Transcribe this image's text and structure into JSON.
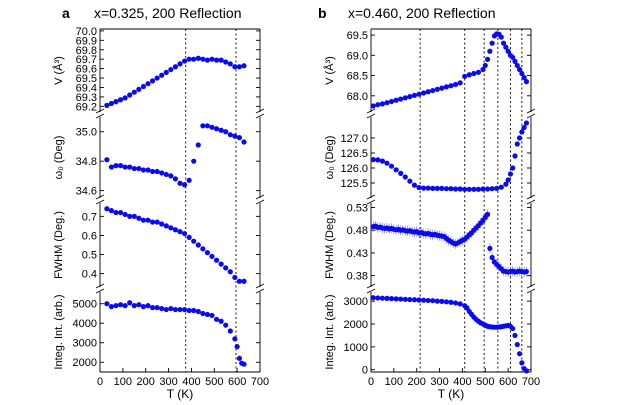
{
  "colors": {
    "points": "#0a0aee",
    "errorbars": "#6a6aff"
  },
  "chart_data": [
    {
      "type": "scatter",
      "letter": "a",
      "title": "x=0.325, 200 Reflection",
      "xlabel": "T (K)",
      "xlim": [
        0,
        700
      ],
      "xticks": [
        "0",
        "100",
        "200",
        "300",
        "400",
        "500",
        "600",
        "700"
      ],
      "vlines_x": [
        375,
        595
      ],
      "panels": [
        {
          "name": "volume",
          "ylabel": "V (Å³)",
          "ylim": [
            69.14,
            70.02
          ],
          "yticks": [
            69.2,
            69.3,
            69.4,
            69.5,
            69.6,
            69.7,
            69.8,
            69.9,
            70.0
          ],
          "tick_labels": [
            "69.2",
            "69.3",
            "69.4",
            "69.5",
            "69.6",
            "69.7",
            "69.8",
            "69.9",
            "70.0"
          ],
          "x": [
            30,
            50,
            70,
            90,
            110,
            130,
            150,
            170,
            190,
            210,
            230,
            250,
            270,
            290,
            310,
            330,
            350,
            370,
            390,
            410,
            430,
            450,
            470,
            490,
            510,
            530,
            550,
            570,
            590,
            610,
            630
          ],
          "y": [
            69.21,
            69.23,
            69.25,
            69.27,
            69.29,
            69.32,
            69.35,
            69.38,
            69.41,
            69.44,
            69.47,
            69.5,
            69.53,
            69.56,
            69.59,
            69.62,
            69.65,
            69.68,
            69.7,
            69.7,
            69.71,
            69.7,
            69.69,
            69.7,
            69.69,
            69.69,
            69.67,
            69.65,
            69.62,
            69.62,
            69.63
          ]
        },
        {
          "name": "omega",
          "ylabel": "ω₀ (Deg)",
          "ylim": [
            34.55,
            35.1
          ],
          "yticks": [
            34.6,
            34.8,
            35.0
          ],
          "tick_labels": [
            "34.6",
            "34.8",
            "35.0"
          ],
          "x": [
            30,
            50,
            70,
            90,
            110,
            130,
            150,
            170,
            190,
            210,
            230,
            250,
            270,
            290,
            310,
            330,
            350,
            370,
            390,
            410,
            430,
            450,
            470,
            490,
            510,
            530,
            550,
            570,
            590,
            610,
            630
          ],
          "y": [
            34.81,
            34.76,
            34.77,
            34.77,
            34.76,
            34.76,
            34.75,
            34.75,
            34.74,
            34.74,
            34.73,
            34.73,
            34.72,
            34.71,
            34.7,
            34.68,
            34.65,
            34.64,
            34.67,
            34.8,
            34.91,
            35.04,
            35.04,
            35.03,
            35.02,
            35.01,
            35.0,
            34.98,
            34.97,
            34.96,
            34.93
          ]
        },
        {
          "name": "fwhm",
          "ylabel": "FWHM (Deg.)",
          "ylim": [
            0.33,
            0.77
          ],
          "yticks": [
            0.4,
            0.5,
            0.6,
            0.7
          ],
          "tick_labels": [
            "0.4",
            "0.5",
            "0.6",
            "0.7"
          ],
          "x": [
            30,
            50,
            70,
            90,
            110,
            130,
            150,
            170,
            190,
            210,
            230,
            250,
            270,
            290,
            310,
            330,
            350,
            370,
            390,
            410,
            430,
            450,
            470,
            490,
            510,
            530,
            550,
            570,
            590,
            610,
            630
          ],
          "y": [
            0.74,
            0.73,
            0.72,
            0.72,
            0.71,
            0.7,
            0.7,
            0.69,
            0.68,
            0.68,
            0.67,
            0.67,
            0.66,
            0.65,
            0.64,
            0.63,
            0.62,
            0.61,
            0.59,
            0.57,
            0.55,
            0.53,
            0.51,
            0.49,
            0.47,
            0.45,
            0.43,
            0.41,
            0.38,
            0.36,
            0.36
          ]
        },
        {
          "name": "intensity",
          "ylabel": "Integ. Int. (arb.)",
          "ylim": [
            1500,
            5600
          ],
          "yticks": [
            2000,
            3000,
            4000,
            5000
          ],
          "tick_labels": [
            "2000",
            "3000",
            "4000",
            "5000"
          ],
          "x": [
            30,
            50,
            70,
            90,
            110,
            130,
            150,
            170,
            190,
            210,
            230,
            250,
            270,
            290,
            310,
            330,
            350,
            370,
            390,
            410,
            430,
            450,
            470,
            490,
            510,
            530,
            550,
            570,
            590,
            600,
            610,
            620,
            630
          ],
          "y": [
            5000,
            4850,
            4900,
            4950,
            4900,
            5050,
            4900,
            4950,
            4850,
            4900,
            4800,
            4800,
            4750,
            4700,
            4750,
            4700,
            4700,
            4700,
            4650,
            4650,
            4600,
            4500,
            4450,
            4400,
            4200,
            4100,
            3900,
            3600,
            3200,
            2800,
            2200,
            1950,
            1900
          ]
        }
      ]
    },
    {
      "type": "scatter",
      "letter": "b",
      "title": "x=0.460, 200 Reflection",
      "xlabel": "T (K)",
      "xlim": [
        0,
        700
      ],
      "xticks": [
        "0",
        "100",
        "200",
        "300",
        "400",
        "500",
        "600",
        "700"
      ],
      "vlines_x": [
        215,
        410,
        495,
        555,
        610,
        660
      ],
      "panels": [
        {
          "name": "volume",
          "ylabel": "V (Å³)",
          "ylim": [
            67.6,
            69.65
          ],
          "yticks": [
            68.0,
            68.5,
            69.0,
            69.5
          ],
          "tick_labels": [
            "68.0",
            "68.5",
            "69.0",
            "69.5"
          ],
          "x": [
            10,
            30,
            50,
            70,
            90,
            110,
            130,
            150,
            170,
            190,
            210,
            230,
            250,
            270,
            290,
            310,
            330,
            350,
            370,
            390,
            410,
            430,
            450,
            470,
            490,
            500,
            510,
            520,
            530,
            540,
            550,
            560,
            570,
            580,
            590,
            600,
            610,
            620,
            630,
            640,
            650,
            660,
            670,
            680
          ],
          "y": [
            67.75,
            67.78,
            67.8,
            67.83,
            67.86,
            67.89,
            67.92,
            67.95,
            67.98,
            68.01,
            68.04,
            68.07,
            68.1,
            68.13,
            68.16,
            68.19,
            68.22,
            68.25,
            68.28,
            68.32,
            68.48,
            68.52,
            68.55,
            68.58,
            68.65,
            68.75,
            68.9,
            69.1,
            69.3,
            69.48,
            69.53,
            69.52,
            69.45,
            69.3,
            69.2,
            69.1,
            69.0,
            68.95,
            68.85,
            68.75,
            68.65,
            68.55,
            68.45,
            68.35
          ]
        },
        {
          "name": "omega",
          "ylabel": "ω₀ (Deg)",
          "ylim": [
            125.0,
            127.7
          ],
          "yticks": [
            125.5,
            126.0,
            126.5,
            127.0
          ],
          "tick_labels": [
            "125.5",
            "126.0",
            "126.5",
            "127.0"
          ],
          "x": [
            10,
            30,
            50,
            70,
            90,
            110,
            130,
            150,
            170,
            190,
            210,
            230,
            250,
            270,
            290,
            310,
            330,
            350,
            370,
            390,
            410,
            430,
            450,
            470,
            490,
            510,
            530,
            550,
            570,
            590,
            600,
            610,
            620,
            630,
            640,
            650,
            660,
            670,
            680
          ],
          "y": [
            126.28,
            126.27,
            126.23,
            126.16,
            126.06,
            125.94,
            125.82,
            125.7,
            125.56,
            125.43,
            125.35,
            125.33,
            125.33,
            125.32,
            125.32,
            125.32,
            125.31,
            125.31,
            125.3,
            125.3,
            125.29,
            125.29,
            125.29,
            125.29,
            125.3,
            125.3,
            125.31,
            125.32,
            125.36,
            125.46,
            125.6,
            125.8,
            126.0,
            126.4,
            126.8,
            127.0,
            127.2,
            127.35,
            127.5
          ]
        },
        {
          "name": "fwhm",
          "ylabel": "FWHM (Deg.)",
          "ylim": [
            0.355,
            0.54
          ],
          "yticks": [
            0.38,
            0.43,
            0.48,
            0.53
          ],
          "tick_labels": [
            "0.38",
            "0.43",
            "0.48",
            "0.53"
          ],
          "x": [
            10,
            20,
            30,
            40,
            50,
            60,
            70,
            80,
            90,
            100,
            110,
            120,
            130,
            140,
            150,
            160,
            170,
            180,
            190,
            200,
            210,
            220,
            230,
            240,
            250,
            260,
            270,
            280,
            290,
            300,
            310,
            320,
            330,
            340,
            350,
            360,
            370,
            380,
            390,
            400,
            410,
            420,
            430,
            440,
            450,
            460,
            470,
            480,
            490,
            500,
            510,
            520,
            530,
            540,
            550,
            560,
            570,
            580,
            590,
            600,
            610,
            620,
            630,
            640,
            650,
            660,
            670,
            680
          ],
          "y": [
            0.488,
            0.489,
            0.486,
            0.487,
            0.485,
            0.484,
            0.485,
            0.483,
            0.484,
            0.482,
            0.481,
            0.482,
            0.48,
            0.481,
            0.479,
            0.478,
            0.479,
            0.477,
            0.476,
            0.477,
            0.474,
            0.475,
            0.473,
            0.472,
            0.473,
            0.471,
            0.47,
            0.471,
            0.469,
            0.468,
            0.467,
            0.466,
            0.462,
            0.458,
            0.455,
            0.452,
            0.45,
            0.452,
            0.455,
            0.458,
            0.46,
            0.465,
            0.47,
            0.474,
            0.48,
            0.485,
            0.49,
            0.496,
            0.502,
            0.508,
            0.515,
            0.44,
            0.42,
            0.41,
            0.405,
            0.4,
            0.395,
            0.39,
            0.389,
            0.388,
            0.389,
            0.39,
            0.388,
            0.389,
            0.39,
            0.389,
            0.388,
            0.389
          ],
          "err": 0.011
        },
        {
          "name": "intensity",
          "ylabel": "Integ. Int. (arb.)",
          "ylim": [
            -100,
            3400
          ],
          "yticks": [
            0,
            1000,
            2000,
            3000
          ],
          "tick_labels": [
            "0",
            "1000",
            "2000",
            "3000"
          ],
          "x": [
            10,
            30,
            50,
            70,
            90,
            110,
            130,
            150,
            170,
            190,
            210,
            230,
            250,
            270,
            290,
            310,
            330,
            350,
            370,
            390,
            410,
            420,
            430,
            440,
            450,
            460,
            470,
            480,
            490,
            500,
            510,
            520,
            530,
            540,
            550,
            560,
            570,
            580,
            590,
            600,
            610,
            620,
            630,
            640,
            650,
            660,
            670,
            680
          ],
          "y": [
            3150,
            3140,
            3130,
            3120,
            3110,
            3100,
            3090,
            3080,
            3070,
            3060,
            3050,
            3040,
            3030,
            3020,
            3000,
            2990,
            2970,
            2950,
            2920,
            2880,
            2800,
            2700,
            2550,
            2420,
            2300,
            2200,
            2120,
            2050,
            2000,
            1950,
            1900,
            1880,
            1870,
            1860,
            1860,
            1870,
            1880,
            1900,
            1920,
            1940,
            1900,
            1800,
            1500,
            1100,
            700,
            300,
            50,
            -50
          ]
        }
      ]
    }
  ]
}
